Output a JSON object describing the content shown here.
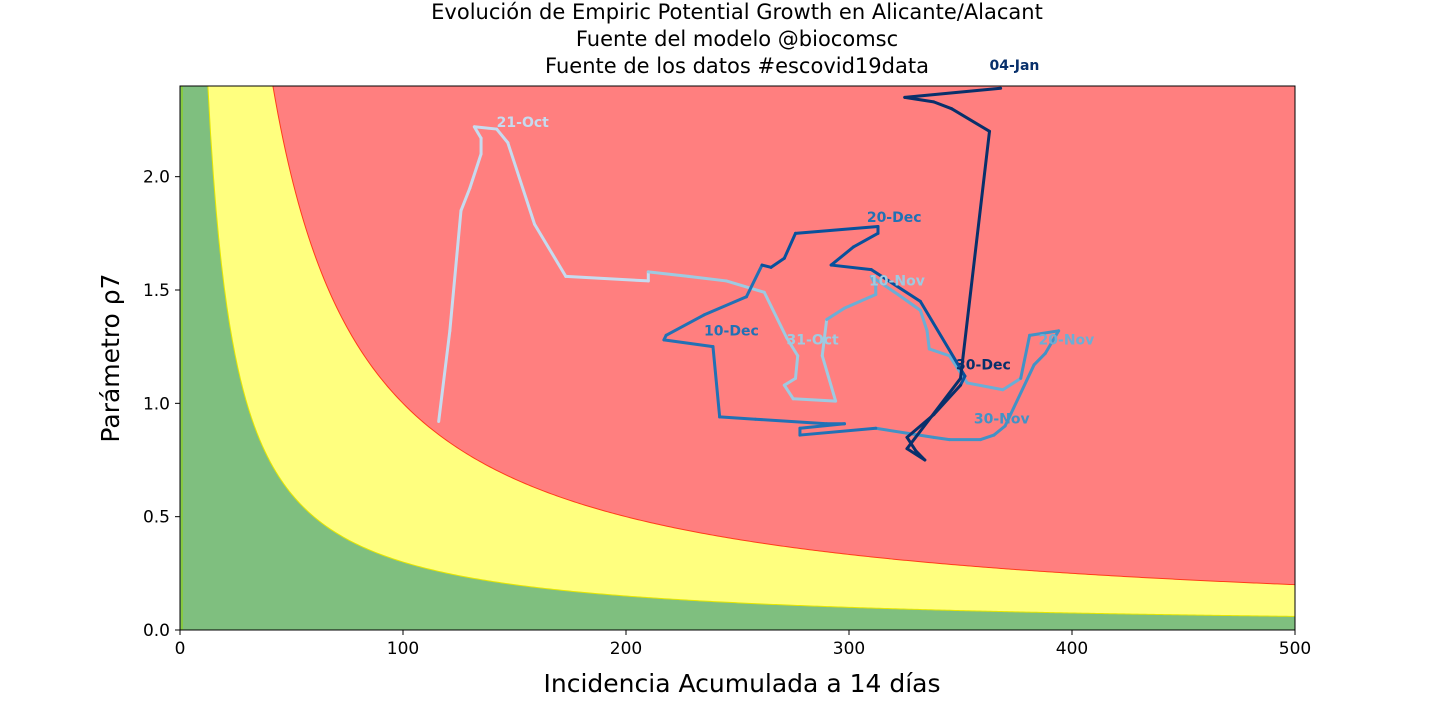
{
  "chart_data": {
    "type": "line",
    "title_lines": [
      "Evolución de Empiric Potential Growth en Alicante/Alacant",
      "Fuente del modelo @biocomsc",
      "Fuente de los datos #escovid19data"
    ],
    "xlabel": "Incidencia Acumulada a 14 días",
    "ylabel": "Parámetro ρ7",
    "xlim": [
      0,
      500
    ],
    "ylim": [
      0,
      2.4
    ],
    "xticks": [
      "0",
      "100",
      "200",
      "300",
      "400",
      "500"
    ],
    "yticks": [
      "0.0",
      "0.5",
      "1.0",
      "1.5",
      "2.0"
    ],
    "grid": false,
    "risk_zones": {
      "green_boundary_constant": 30,
      "yellow_boundary_constant": 100,
      "colors": {
        "green": "#7fbf7f",
        "yellow": "#ffff7f",
        "red": "#ff7f7f",
        "green_edge": "#8fd400",
        "yellow_edge": "#e6e600",
        "red_edge": "#ff3c1a"
      }
    },
    "trajectory_colors": [
      "#c6dbef",
      "#9ecae1",
      "#6baed6",
      "#4292c6",
      "#2171b5",
      "#08519c",
      "#08306b"
    ],
    "trajectory": [
      {
        "x": 116,
        "y": 0.92
      },
      {
        "x": 121,
        "y": 1.32
      },
      {
        "x": 126,
        "y": 1.85
      },
      {
        "x": 130,
        "y": 1.95
      },
      {
        "x": 135,
        "y": 2.1
      },
      {
        "x": 135,
        "y": 2.17
      },
      {
        "x": 132,
        "y": 2.22
      },
      {
        "x": 142,
        "y": 2.21
      },
      {
        "x": 147,
        "y": 2.15
      },
      {
        "x": 159,
        "y": 1.79
      },
      {
        "x": 173,
        "y": 1.56
      },
      {
        "x": 210,
        "y": 1.54
      },
      {
        "x": 210,
        "y": 1.58
      },
      {
        "x": 228,
        "y": 1.56
      },
      {
        "x": 245,
        "y": 1.54
      },
      {
        "x": 262,
        "y": 1.49
      },
      {
        "x": 272,
        "y": 1.29
      },
      {
        "x": 277,
        "y": 1.21
      },
      {
        "x": 276,
        "y": 1.11
      },
      {
        "x": 271,
        "y": 1.08
      },
      {
        "x": 275,
        "y": 1.02
      },
      {
        "x": 294,
        "y": 1.01
      },
      {
        "x": 288,
        "y": 1.21
      },
      {
        "x": 290,
        "y": 1.37
      },
      {
        "x": 298,
        "y": 1.42
      },
      {
        "x": 312,
        "y": 1.48
      },
      {
        "x": 312,
        "y": 1.52
      },
      {
        "x": 310,
        "y": 1.56
      },
      {
        "x": 322,
        "y": 1.48
      },
      {
        "x": 332,
        "y": 1.41
      },
      {
        "x": 335,
        "y": 1.32
      },
      {
        "x": 336,
        "y": 1.24
      },
      {
        "x": 345,
        "y": 1.21
      },
      {
        "x": 353,
        "y": 1.09
      },
      {
        "x": 369,
        "y": 1.06
      },
      {
        "x": 377,
        "y": 1.11
      },
      {
        "x": 381,
        "y": 1.3
      },
      {
        "x": 394,
        "y": 1.32
      },
      {
        "x": 391,
        "y": 1.27
      },
      {
        "x": 388,
        "y": 1.22
      },
      {
        "x": 383,
        "y": 1.17
      },
      {
        "x": 370,
        "y": 0.9
      },
      {
        "x": 365,
        "y": 0.86
      },
      {
        "x": 359,
        "y": 0.84
      },
      {
        "x": 345,
        "y": 0.84
      },
      {
        "x": 338,
        "y": 0.85
      },
      {
        "x": 312,
        "y": 0.89
      },
      {
        "x": 278,
        "y": 0.86
      },
      {
        "x": 278,
        "y": 0.89
      },
      {
        "x": 298,
        "y": 0.91
      },
      {
        "x": 290,
        "y": 0.91
      },
      {
        "x": 258,
        "y": 0.93
      },
      {
        "x": 242,
        "y": 0.94
      },
      {
        "x": 239,
        "y": 1.25
      },
      {
        "x": 217,
        "y": 1.28
      },
      {
        "x": 218,
        "y": 1.3
      },
      {
        "x": 235,
        "y": 1.39
      },
      {
        "x": 254,
        "y": 1.47
      },
      {
        "x": 261,
        "y": 1.61
      },
      {
        "x": 265,
        "y": 1.6
      },
      {
        "x": 271,
        "y": 1.64
      },
      {
        "x": 276,
        "y": 1.75
      },
      {
        "x": 313,
        "y": 1.78
      },
      {
        "x": 313,
        "y": 1.75
      },
      {
        "x": 302,
        "y": 1.69
      },
      {
        "x": 292,
        "y": 1.61
      },
      {
        "x": 310,
        "y": 1.59
      },
      {
        "x": 332,
        "y": 1.45
      },
      {
        "x": 352,
        "y": 1.12
      },
      {
        "x": 350,
        "y": 1.08
      },
      {
        "x": 338,
        "y": 0.95
      },
      {
        "x": 326,
        "y": 0.85
      },
      {
        "x": 330,
        "y": 0.79
      },
      {
        "x": 334,
        "y": 0.75
      },
      {
        "x": 326,
        "y": 0.8
      },
      {
        "x": 350,
        "y": 1.11
      },
      {
        "x": 363,
        "y": 2.2
      },
      {
        "x": 346,
        "y": 2.3
      },
      {
        "x": 338,
        "y": 2.33
      },
      {
        "x": 325,
        "y": 2.35
      },
      {
        "x": 368,
        "y": 2.39
      }
    ],
    "annotations": [
      {
        "text": "21-Oct",
        "x": 142,
        "y": 2.22,
        "color": "#c6dbef"
      },
      {
        "text": "31-Oct",
        "x": 272,
        "y": 1.26,
        "color": "#9ecae1"
      },
      {
        "text": "10-Nov",
        "x": 309,
        "y": 1.52,
        "color": "#9ecae1"
      },
      {
        "text": "20-Nov",
        "x": 385,
        "y": 1.26,
        "color": "#6baed6"
      },
      {
        "text": "30-Nov",
        "x": 356,
        "y": 0.91,
        "color": "#4292c6"
      },
      {
        "text": "10-Dec",
        "x": 235,
        "y": 1.3,
        "color": "#2171b5"
      },
      {
        "text": "20-Dec",
        "x": 308,
        "y": 1.8,
        "color": "#2171b5"
      },
      {
        "text": "30-Dec",
        "x": 348,
        "y": 1.15,
        "color": "#08306b"
      },
      {
        "text": "04-Jan",
        "x": 363,
        "y": 2.47,
        "color": "#08306b"
      }
    ]
  }
}
